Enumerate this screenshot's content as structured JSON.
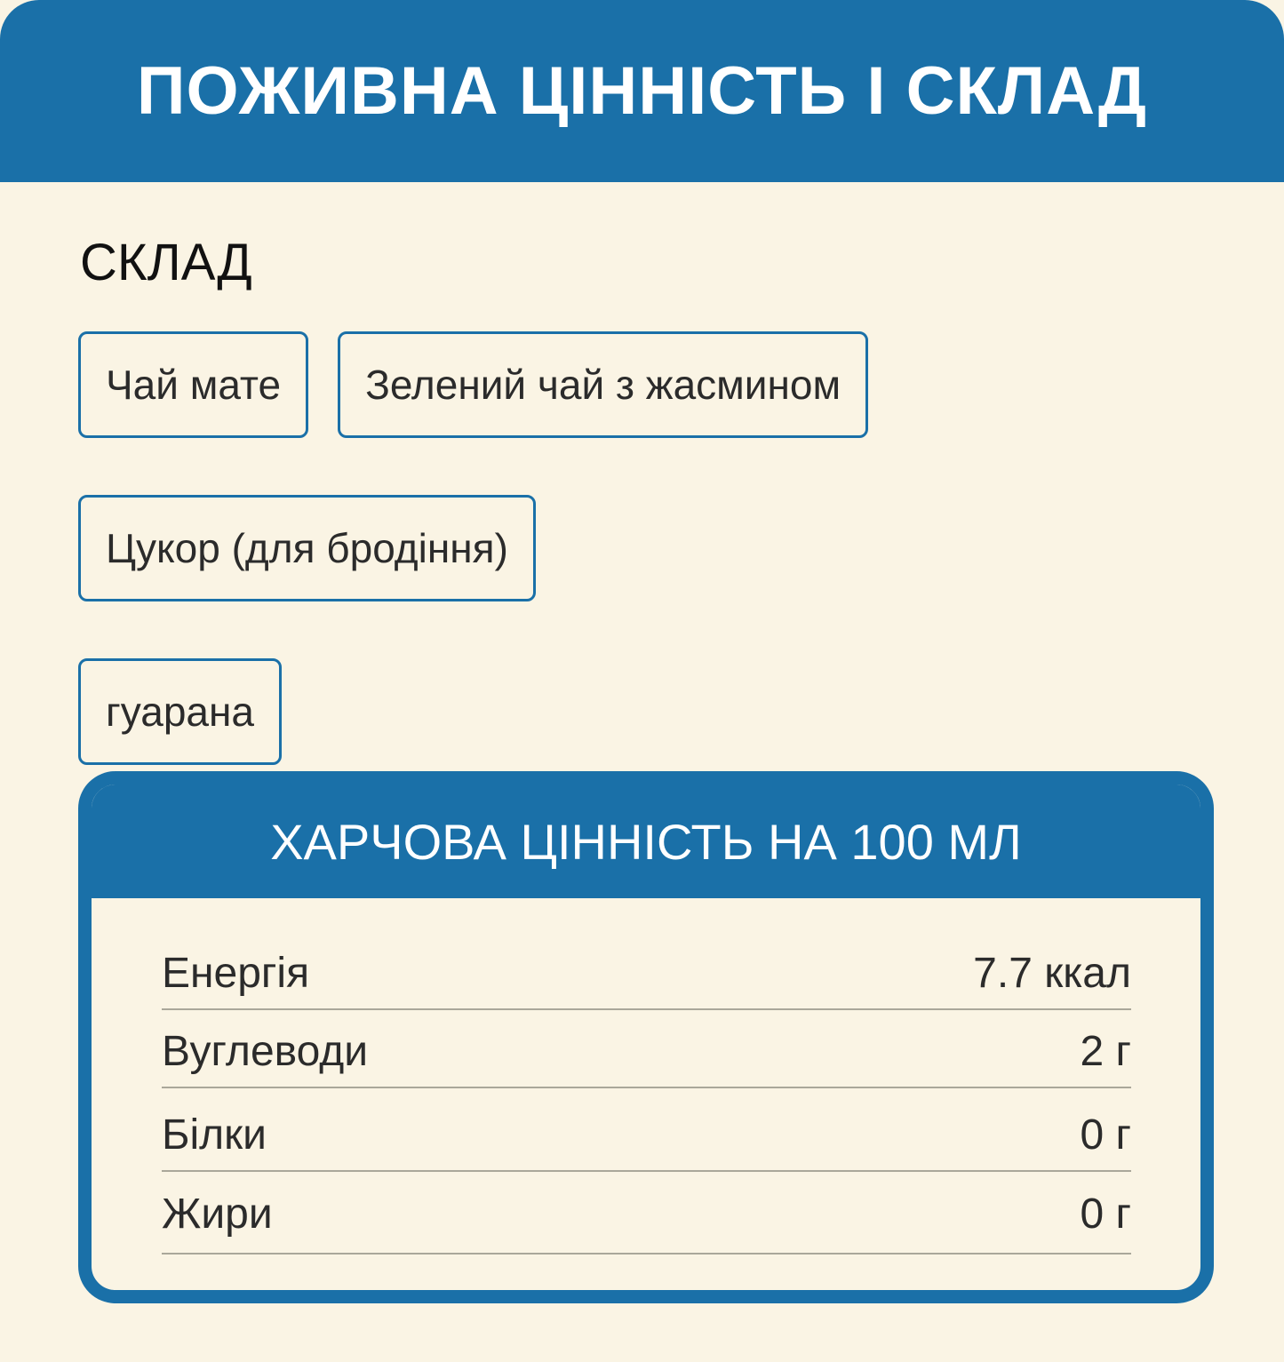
{
  "title": "ПОЖИВНА ЦІННІСТЬ І СКЛАД",
  "composition": {
    "heading": "СКЛАД",
    "ingredients": [
      "Чай мате",
      "Зелений чай з жасмином",
      "Цукор (для бродіння)",
      "гуарана"
    ]
  },
  "nutrition": {
    "heading": "ХАРЧОВА ЦІННІСТЬ НА 100 МЛ",
    "rows": [
      {
        "label": "Енергія",
        "value": "7.7 ккал"
      },
      {
        "label": "Вуглеводи",
        "value": "2 г"
      },
      {
        "label": "Білки",
        "value": "0 г"
      },
      {
        "label": "Жири",
        "value": "0 г"
      }
    ]
  },
  "colors": {
    "accent": "#1a70a8",
    "background": "#faf4e4"
  }
}
